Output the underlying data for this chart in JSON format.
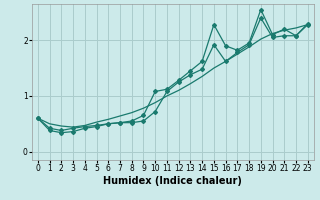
{
  "xlabel": "Humidex (Indice chaleur)",
  "bg_color": "#cceaea",
  "grid_color": "#aacccc",
  "line_color": "#1a7a6e",
  "xlim": [
    -0.5,
    23.5
  ],
  "ylim": [
    -0.15,
    2.65
  ],
  "xticks": [
    0,
    1,
    2,
    3,
    4,
    5,
    6,
    7,
    8,
    9,
    10,
    11,
    12,
    13,
    14,
    15,
    16,
    17,
    18,
    19,
    20,
    21,
    22,
    23
  ],
  "yticks": [
    0,
    1,
    2
  ],
  "line1_x": [
    0,
    1,
    2,
    3,
    4,
    5,
    6,
    7,
    8,
    9,
    10,
    11,
    12,
    13,
    14,
    15,
    16,
    17,
    18,
    19,
    20,
    21,
    22,
    23
  ],
  "line1_y": [
    0.6,
    0.42,
    0.38,
    0.42,
    0.45,
    0.47,
    0.5,
    0.52,
    0.52,
    0.55,
    0.72,
    1.08,
    1.25,
    1.38,
    1.48,
    1.92,
    1.62,
    1.78,
    1.92,
    2.4,
    2.05,
    2.08,
    2.08,
    2.28
  ],
  "line2_x": [
    0,
    1,
    2,
    3,
    4,
    5,
    6,
    7,
    8,
    9,
    10,
    11,
    12,
    13,
    14,
    15,
    16,
    17,
    18,
    19,
    20,
    21,
    22,
    23
  ],
  "line2_y": [
    0.6,
    0.38,
    0.34,
    0.36,
    0.42,
    0.45,
    0.5,
    0.52,
    0.55,
    0.65,
    1.08,
    1.12,
    1.28,
    1.45,
    1.62,
    2.28,
    1.9,
    1.82,
    1.95,
    2.55,
    2.1,
    2.2,
    2.08,
    2.3
  ],
  "line3_x": [
    0,
    1,
    2,
    3,
    4,
    5,
    6,
    7,
    8,
    9,
    10,
    11,
    12,
    13,
    14,
    15,
    16,
    17,
    18,
    19,
    20,
    21,
    22,
    23
  ],
  "line3_y": [
    0.6,
    0.5,
    0.46,
    0.44,
    0.47,
    0.53,
    0.58,
    0.64,
    0.7,
    0.78,
    0.88,
    1.0,
    1.1,
    1.22,
    1.35,
    1.5,
    1.62,
    1.75,
    1.88,
    2.02,
    2.12,
    2.18,
    2.22,
    2.28
  ],
  "marker": "D",
  "markersize": 2.0,
  "linewidth": 0.9,
  "xlabel_fontsize": 7,
  "tick_fontsize": 5.5
}
